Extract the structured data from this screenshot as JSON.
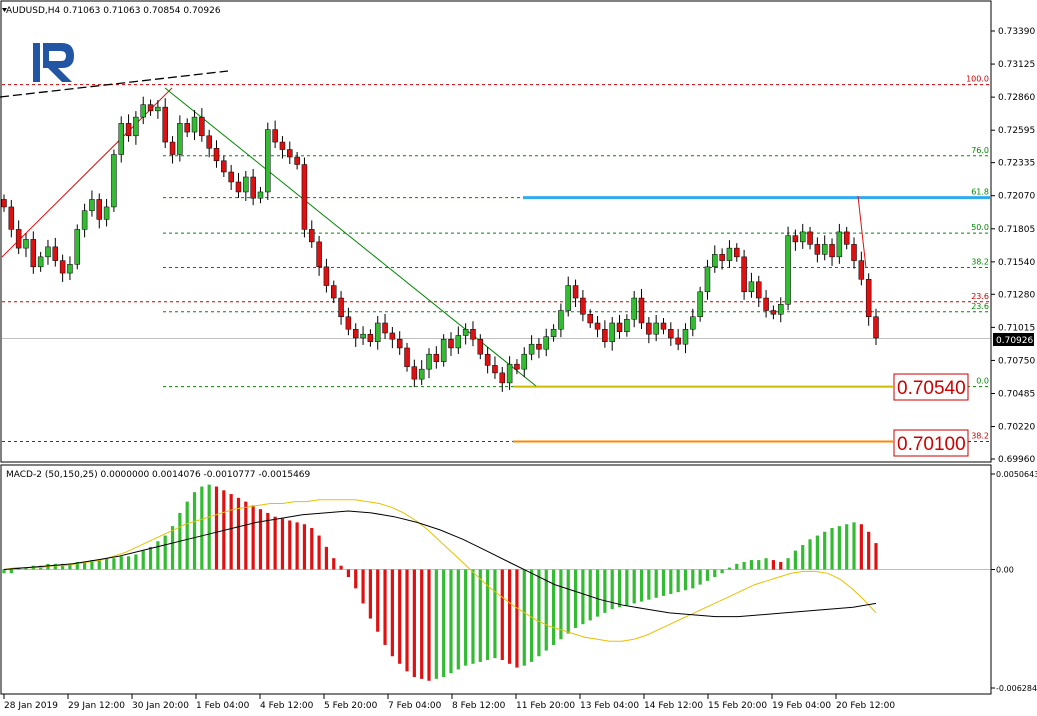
{
  "header": {
    "main_title": "AUDUSD,H4  0.71063 0.71063 0.70854 0.70926",
    "macd_title": "MACD-2 (50,150,25) 0.0000000 0.0014076 -0.0010777 -0.0015469"
  },
  "logo": {
    "letter": "R",
    "color": "#2255a4"
  },
  "colors": {
    "bull": "#33bb33",
    "bear": "#dd1111",
    "fib_green": "#008800",
    "fib_red": "#cc0000",
    "resistance": "#33aaee",
    "target_yellow": "#ccbb00",
    "target_orange": "#ff8800",
    "macd_signal": "#e8c000",
    "macd_line": "#000000"
  },
  "chart_data": [
    {
      "type": "candlestick",
      "title": "AUDUSD,H4",
      "symbol": "AUDUSD",
      "timeframe": "H4",
      "last_ohlc": {
        "open": 0.71063,
        "high": 0.71063,
        "low": 0.70854,
        "close": 0.70926
      },
      "ylim": [
        0.6996,
        0.7364
      ],
      "y_ticks": [
        "0.73390",
        "0.73125",
        "0.72860",
        "0.72595",
        "0.72335",
        "0.72070",
        "0.71805",
        "0.71540",
        "0.71280",
        "0.71015",
        "0.70750",
        "0.70485",
        "0.70220",
        "0.69960"
      ],
      "current_price_label": "0.70926",
      "x_labels": [
        "28 Jan 2019",
        "29 Jan 12:00",
        "30 Jan 20:00",
        "1 Feb 04:00",
        "4 Feb 12:00",
        "5 Feb 20:00",
        "7 Feb 04:00",
        "8 Feb 12:00",
        "11 Feb 20:00",
        "13 Feb 04:00",
        "14 Feb 12:00",
        "15 Feb 20:00",
        "19 Feb 04:00",
        "20 Feb 12:00"
      ],
      "closes": [
        0.7198,
        0.718,
        0.7165,
        0.7172,
        0.715,
        0.7158,
        0.7166,
        0.7155,
        0.7145,
        0.7152,
        0.718,
        0.7195,
        0.7204,
        0.7188,
        0.7198,
        0.724,
        0.7265,
        0.7255,
        0.727,
        0.728,
        0.7275,
        0.7278,
        0.725,
        0.724,
        0.7265,
        0.7258,
        0.727,
        0.7255,
        0.7245,
        0.7235,
        0.7226,
        0.7218,
        0.721,
        0.7222,
        0.7205,
        0.721,
        0.726,
        0.725,
        0.7244,
        0.7238,
        0.7232,
        0.718,
        0.717,
        0.715,
        0.7135,
        0.7125,
        0.711,
        0.71,
        0.7093,
        0.7096,
        0.709,
        0.7105,
        0.7097,
        0.7092,
        0.7085,
        0.707,
        0.706,
        0.7068,
        0.708,
        0.7074,
        0.7092,
        0.7085,
        0.7095,
        0.71,
        0.7092,
        0.708,
        0.7071,
        0.7065,
        0.7057,
        0.7072,
        0.7068,
        0.708,
        0.7088,
        0.7084,
        0.7094,
        0.71,
        0.7115,
        0.7135,
        0.7125,
        0.7112,
        0.7105,
        0.71,
        0.709,
        0.7105,
        0.7098,
        0.7108,
        0.7125,
        0.7105,
        0.7096,
        0.7105,
        0.71,
        0.7093,
        0.7088,
        0.71,
        0.711,
        0.713,
        0.715,
        0.716,
        0.7155,
        0.7165,
        0.7158,
        0.713,
        0.7138,
        0.7125,
        0.7115,
        0.7112,
        0.712,
        0.7175,
        0.717,
        0.7178,
        0.7168,
        0.716,
        0.7168,
        0.7158,
        0.7178,
        0.7168,
        0.7155,
        0.714,
        0.711,
        0.7093
      ],
      "fib_levels": [
        {
          "label": "100.0",
          "price": 0.7296,
          "color": "#cc0000"
        },
        {
          "label": "76.0",
          "price": 0.7239,
          "color": "#008800"
        },
        {
          "label": "61.8",
          "price": 0.72055,
          "color": "#008800"
        },
        {
          "label": "50.0",
          "price": 0.7177,
          "color": "#008800"
        },
        {
          "label": "38.2",
          "price": 0.71495,
          "color": "#008800"
        },
        {
          "label": "23.6",
          "price": 0.7122,
          "color": "#cc0000"
        },
        {
          "label": "23.6",
          "price": 0.7114,
          "color": "#008800"
        },
        {
          "label": "0.0",
          "price": 0.7054,
          "color": "#008800"
        },
        {
          "label": "38.2",
          "price": 0.701,
          "color": "#cc0000"
        }
      ],
      "resistance_level": 0.72055,
      "targets": [
        {
          "label": "0.70540",
          "price": 0.7054
        },
        {
          "label": "0.70100",
          "price": 0.701
        }
      ]
    },
    {
      "type": "bar",
      "title": "MACD-2 (50,150,25)",
      "values_summary": [
        "0.0000000",
        "0.0014076",
        "-0.0010777",
        "-0.0015469"
      ],
      "y_ticks": [
        "0.0050643",
        "0.00",
        "-0.006284"
      ],
      "ylim": [
        -0.006284,
        0.0050643
      ],
      "hist_sample": [
        -0.0002,
        -0.0002,
        0.0001,
        0.0001,
        0.0002,
        0.0002,
        0.0003,
        0.0003,
        0.0003,
        0.0003,
        0.0004,
        0.0004,
        0.0005,
        0.0005,
        0.0006,
        0.0006,
        0.0007,
        0.0007,
        0.0008,
        0.001,
        0.0012,
        0.0015,
        0.0018,
        0.0023,
        0.003,
        0.0036,
        0.0041,
        0.0044,
        0.0045,
        0.0044,
        0.0042,
        0.004,
        0.0038,
        0.0036,
        0.0034,
        0.0032,
        0.003,
        0.0028,
        0.0027,
        0.0026,
        0.0025,
        0.0024,
        0.0022,
        0.0018,
        0.0012,
        0.0006,
        0.0002,
        -0.0004,
        -0.001,
        -0.0018,
        -0.0026,
        -0.0033,
        -0.004,
        -0.0046,
        -0.005,
        -0.0054,
        -0.0057,
        -0.0058,
        -0.0059,
        -0.0058,
        -0.0057,
        -0.0055,
        -0.0053,
        -0.0051,
        -0.005,
        -0.0049,
        -0.0048,
        -0.0047,
        -0.0048,
        -0.005,
        -0.0052,
        -0.0051,
        -0.0049,
        -0.0046,
        -0.0043,
        -0.004,
        -0.0037,
        -0.0034,
        -0.0031,
        -0.0029,
        -0.0027,
        -0.0025,
        -0.0023,
        -0.0021,
        -0.002,
        -0.0019,
        -0.0018,
        -0.0017,
        -0.0016,
        -0.0015,
        -0.0014,
        -0.0013,
        -0.0012,
        -0.0011,
        -0.001,
        -0.0008,
        -0.0006,
        -0.0004,
        -0.0002,
        0.0001,
        0.0003,
        0.0004,
        0.0005,
        0.0005,
        0.0006,
        0.0005,
        0.0004,
        0.0006,
        0.001,
        0.0013,
        0.0016,
        0.0018,
        0.002,
        0.0022,
        0.0023,
        0.0024,
        0.0025,
        0.0024,
        0.002,
        0.0014
      ],
      "signal_sample": [
        0.0,
        0.0001,
        0.0001,
        0.0001,
        0.0002,
        0.0002,
        0.0003,
        0.0004,
        0.0005,
        0.0007,
        0.0009,
        0.0012,
        0.0015,
        0.0018,
        0.0021,
        0.0024,
        0.0026,
        0.0028,
        0.003,
        0.0032,
        0.0033,
        0.0034,
        0.0035,
        0.0035,
        0.0036,
        0.0036,
        0.0037,
        0.0037,
        0.0037,
        0.0037,
        0.0036,
        0.0035,
        0.0033,
        0.003,
        0.0026,
        0.0021,
        0.0015,
        0.0009,
        0.0003,
        -0.0003,
        -0.0009,
        -0.0014,
        -0.0019,
        -0.0023,
        -0.0027,
        -0.003,
        -0.0032,
        -0.0034,
        -0.0036,
        -0.0037,
        -0.0038,
        -0.0038,
        -0.0037,
        -0.0035,
        -0.0032,
        -0.0029,
        -0.0026,
        -0.0023,
        -0.002,
        -0.0017,
        -0.0014,
        -0.0011,
        -0.0008,
        -0.0006,
        -0.0004,
        -0.0002,
        -0.0001,
        -0.0001,
        -0.0002,
        -0.0005,
        -0.001,
        -0.0016,
        -0.0023
      ],
      "macd_sample": [
        0.0,
        0.0001,
        0.0002,
        0.0003,
        0.0005,
        0.0007,
        0.001,
        0.0013,
        0.0016,
        0.0019,
        0.0022,
        0.0025,
        0.0027,
        0.0029,
        0.003,
        0.0031,
        0.003,
        0.0028,
        0.0025,
        0.0021,
        0.0016,
        0.001,
        0.0004,
        -0.0002,
        -0.0008,
        -0.0012,
        -0.0016,
        -0.0019,
        -0.0021,
        -0.0023,
        -0.0024,
        -0.0025,
        -0.0025,
        -0.0024,
        -0.0023,
        -0.0022,
        -0.0021,
        -0.002,
        -0.0018
      ]
    }
  ]
}
